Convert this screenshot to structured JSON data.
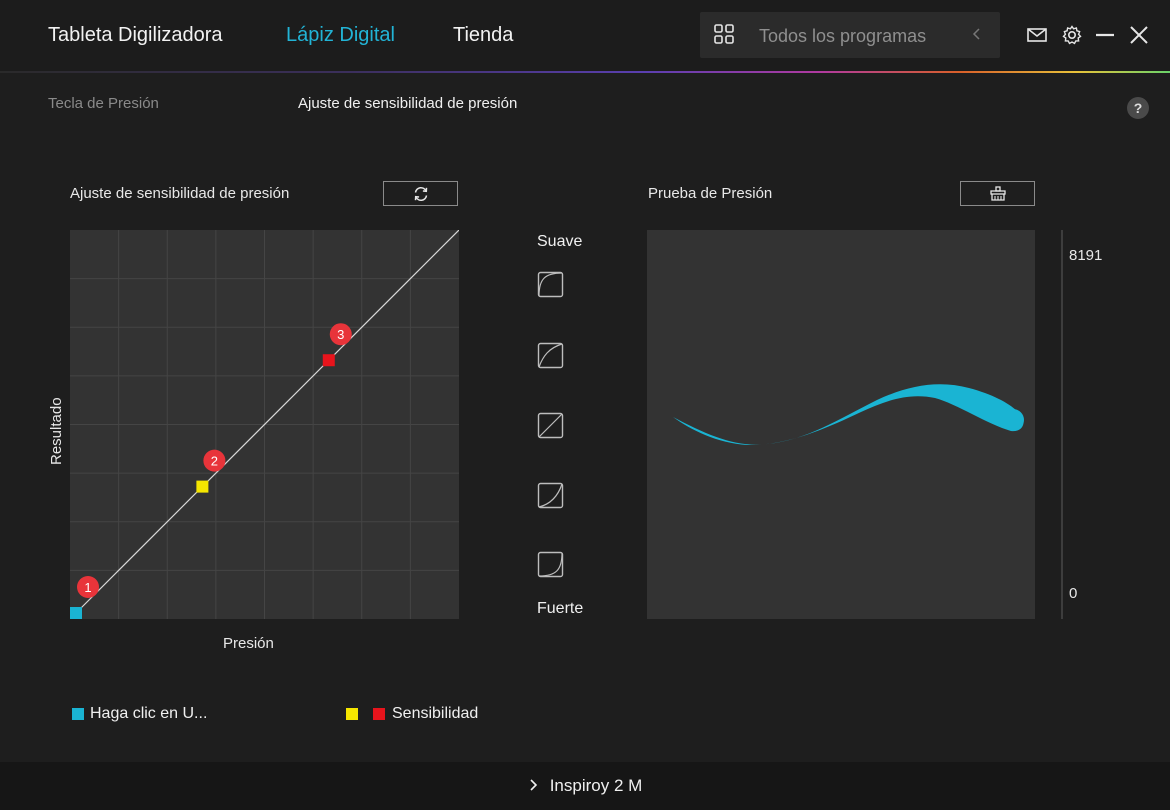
{
  "nav": {
    "tabs": [
      {
        "label": "Tableta Digilizadora",
        "active": false
      },
      {
        "label": "Lápiz Digital",
        "active": true
      },
      {
        "label": "Tienda",
        "active": false
      }
    ],
    "programs_placeholder": "Todos los programas"
  },
  "subnav": {
    "items": [
      {
        "label": "Tecla de Presión",
        "active": false
      },
      {
        "label": "Ajuste de sensibilidad de presión",
        "active": true
      }
    ],
    "help": "?"
  },
  "curve_panel": {
    "title": "Ajuste de sensibilidad de presión",
    "ylabel": "Resultado",
    "xlabel": "Presión",
    "points": [
      {
        "label": "1",
        "pressure": 0.0,
        "output": 0.0,
        "color": "#1ab4d3"
      },
      {
        "label": "2",
        "pressure": 0.33,
        "output": 0.33,
        "color": "#f5e600"
      },
      {
        "label": "3",
        "pressure": 0.66,
        "output": 0.66,
        "color": "#e8141c"
      }
    ]
  },
  "presets": {
    "top_label": "Suave",
    "bottom_label": "Fuerte",
    "icons": [
      "curve-soft-2-icon",
      "curve-soft-1-icon",
      "curve-linear-icon",
      "curve-firm-1-icon",
      "curve-firm-2-icon"
    ]
  },
  "test_panel": {
    "title": "Prueba de Presión",
    "max_value": "8191",
    "min_value": "0",
    "stroke_color": "#1ab4d3"
  },
  "legend": {
    "item1": "Haga clic en U...",
    "item2": "Sensibilidad"
  },
  "footer": {
    "device": "Inspiroy 2 M"
  },
  "colors": {
    "accent": "#22b4d6",
    "background": "#1e1e1e",
    "chart_bg": "#333333"
  }
}
